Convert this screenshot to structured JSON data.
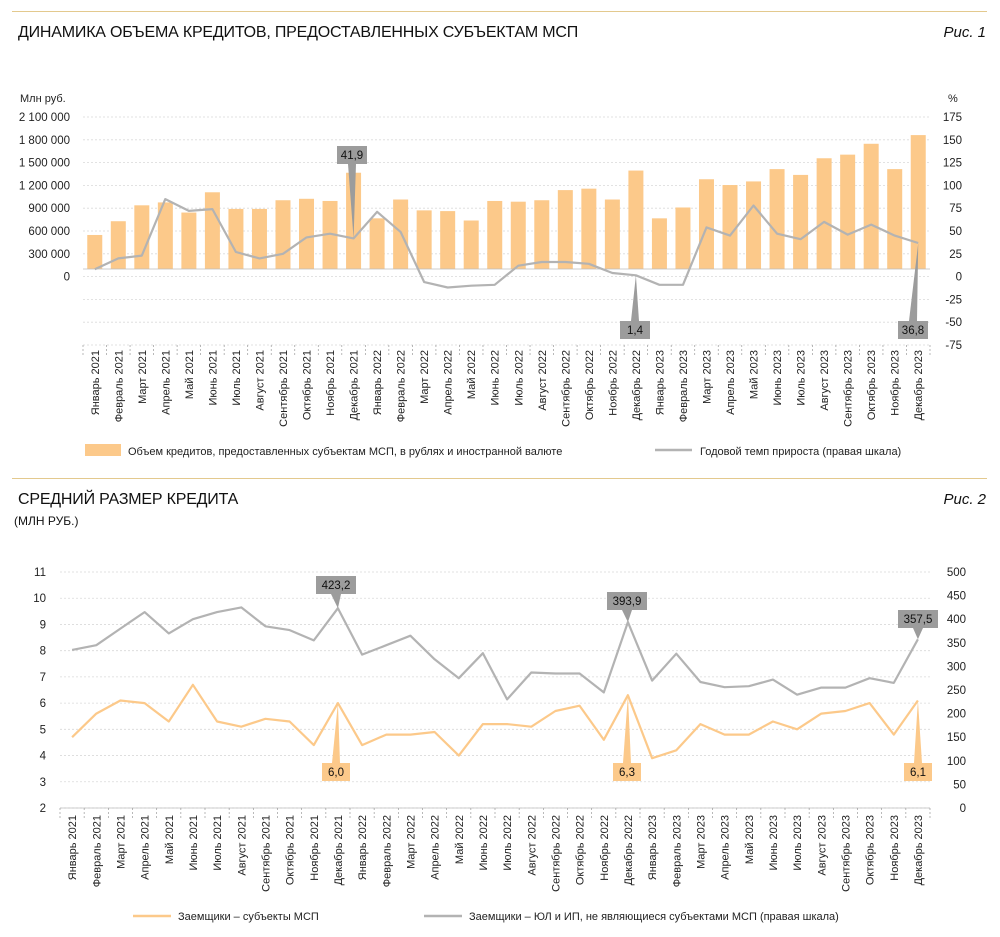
{
  "colors": {
    "bar": "#fcc98a",
    "grey": "#b3b3b3",
    "orange": "#fcc98a",
    "callout_grey": "#9c9c9c",
    "callout_orange": "#fcc98a",
    "rule": "#e3c98e"
  },
  "months": [
    "Январь 2021",
    "Февраль 2021",
    "Март 2021",
    "Апрель 2021",
    "Май 2021",
    "Июнь 2021",
    "Июль 2021",
    "Август 2021",
    "Сентябрь 2021",
    "Октябрь 2021",
    "Ноябрь 2021",
    "Декабрь 2021",
    "Январь 2022",
    "Февраль 2022",
    "Март 2022",
    "Апрель 2022",
    "Май 2022",
    "Июнь 2022",
    "Июль 2022",
    "Август 2022",
    "Сентябрь 2022",
    "Октябрь 2022",
    "Ноябрь 2022",
    "Декабрь 2022",
    "Январь 2023",
    "Февраль 2023",
    "Март 2023",
    "Апрель 2023",
    "Май 2023",
    "Июнь 2023",
    "Июль 2023",
    "Август 2023",
    "Сентябрь 2023",
    "Октябрь 2023",
    "Ноябрь 2023",
    "Декабрь 2023"
  ],
  "fig1": {
    "title": "ДИНАМИКА ОБЪЕМА КРЕДИТОВ, ПРЕДОСТАВЛЕННЫХ СУБЪЕКТАМ МСП",
    "fig_label": "Рис. 1",
    "left_unit": "Млн руб.",
    "right_unit": "%",
    "left_ticks": [
      "2 100 000",
      "1 800 000",
      "1 500 000",
      "1 200 000",
      "900 000",
      "600 000",
      "300 000",
      "0"
    ],
    "right_ticks": [
      "175",
      "150",
      "125",
      "100",
      "75",
      "50",
      "25",
      "0",
      "-25",
      "-50",
      "-75"
    ],
    "legend_bar": "Объем кредитов, предоставленных субъектам МСП, в рублях и иностранной валюте",
    "legend_line": "Годовой темп прироста (правая шкала)",
    "callouts": [
      "41,9",
      "1,4",
      "36,8"
    ]
  },
  "fig2": {
    "title": "СРЕДНИЙ РАЗМЕР КРЕДИТА",
    "subtitle": "(МЛН РУБ.)",
    "fig_label": "Рис. 2",
    "left_ticks": [
      "11",
      "10",
      "9",
      "8",
      "7",
      "6",
      "5",
      "4",
      "3",
      "2"
    ],
    "right_ticks": [
      "500",
      "450",
      "400",
      "350",
      "300",
      "250",
      "200",
      "150",
      "100",
      "50",
      "0"
    ],
    "legend_orange": "Заемщики – субъекты МСП",
    "legend_grey": "Заемщики – ЮЛ и ИП, не являющиеся субъектами МСП (правая шкала)",
    "callouts_grey": [
      "423,2",
      "393,9",
      "357,5"
    ],
    "callouts_orange": [
      "6,0",
      "6,3",
      "6,1"
    ]
  },
  "chart_data": [
    {
      "type": "bar",
      "title": "ДИНАМИКА ОБЪЕМА КРЕДИТОВ, ПРЕДОСТАВЛЕННЫХ СУБЪЕКТАМ МСП",
      "ylabel": "Млн руб.",
      "y2label": "%",
      "ylim": [
        -1050000,
        2100000
      ],
      "y2lim": [
        -75,
        175
      ],
      "series": [
        {
          "name": "Объем кредитов, предоставленных субъектам МСП, в рублях и иностранной валюте",
          "type": "bar",
          "axis": "left",
          "values": [
            470000,
            660000,
            880000,
            920000,
            780000,
            1060000,
            830000,
            830000,
            950000,
            970000,
            940000,
            1330000,
            700000,
            960000,
            810000,
            800000,
            670000,
            940000,
            930000,
            950000,
            1090000,
            1110000,
            960000,
            1360000,
            700000,
            850000,
            1240000,
            1160000,
            1210000,
            1380000,
            1300000,
            1530000,
            1580000,
            1730000,
            1380000,
            1850000
          ]
        },
        {
          "name": "Годовой темп прироста (правая шкала)",
          "type": "line",
          "axis": "right",
          "values": [
            8,
            20,
            23,
            85,
            72,
            74,
            27,
            20,
            25,
            43,
            47,
            41.9,
            71,
            49,
            -6,
            -12,
            -10,
            -9,
            12,
            16,
            16,
            14,
            4,
            1.4,
            -9,
            -9,
            54,
            45,
            78,
            47,
            41,
            60,
            46,
            57,
            45,
            36.8
          ]
        }
      ],
      "legend": "bottom"
    },
    {
      "type": "line",
      "title": "СРЕДНИЙ РАЗМЕР КРЕДИТА",
      "ylabel": "(МЛН РУБ.)",
      "ylim": [
        2,
        11
      ],
      "y2lim": [
        0,
        500
      ],
      "series": [
        {
          "name": "Заемщики – субъекты МСП",
          "axis": "left",
          "values": [
            4.7,
            5.6,
            6.1,
            6.0,
            5.3,
            6.7,
            5.3,
            5.1,
            5.4,
            5.3,
            4.4,
            6.0,
            4.4,
            4.8,
            4.8,
            4.9,
            4.0,
            5.2,
            5.2,
            5.1,
            5.7,
            5.9,
            4.6,
            6.3,
            3.9,
            4.2,
            5.2,
            4.8,
            4.8,
            5.3,
            5.0,
            5.6,
            5.7,
            6.0,
            4.8,
            6.1
          ]
        },
        {
          "name": "Заемщики – ЮЛ и ИП, не являющиеся субъектами МСП (правая шкала)",
          "axis": "right",
          "values": [
            335,
            345,
            380,
            415,
            370,
            400,
            415,
            425,
            385,
            377,
            355,
            423.2,
            325,
            345,
            365,
            315,
            275,
            328,
            230,
            287,
            285,
            285,
            245,
            393.9,
            270,
            327,
            267,
            256,
            258,
            272,
            240,
            255,
            255,
            275,
            265,
            357.5
          ]
        }
      ],
      "legend": "bottom"
    }
  ]
}
